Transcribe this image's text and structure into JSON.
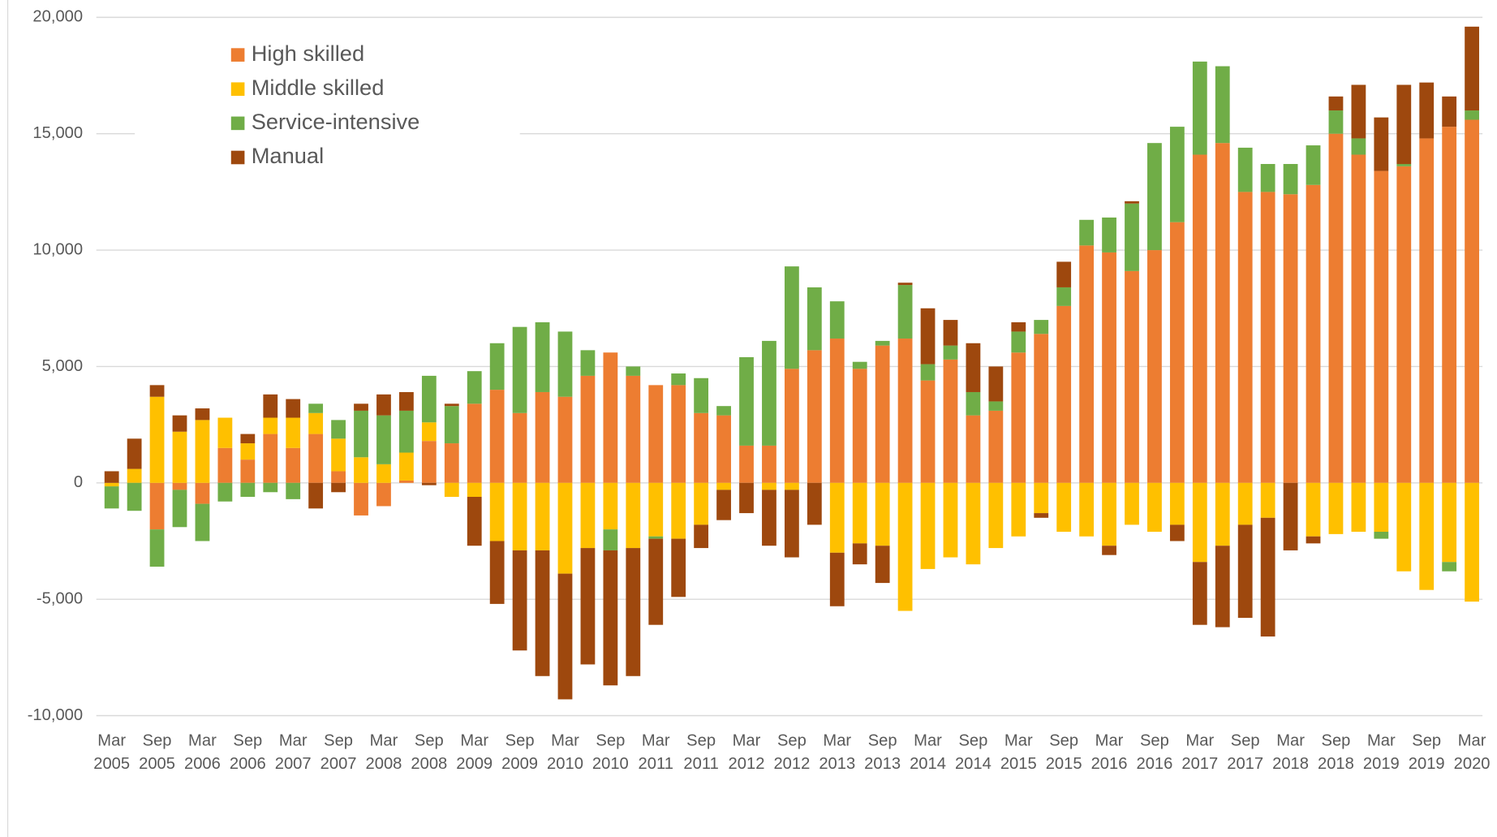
{
  "chart_data": {
    "type": "stacked_bar",
    "categories": [
      "Mar 2005",
      null,
      "Sep 2005",
      null,
      "Mar 2006",
      null,
      "Sep 2006",
      null,
      "Mar 2007",
      null,
      "Sep 2007",
      null,
      "Mar 2008",
      null,
      "Sep 2008",
      null,
      "Mar 2009",
      null,
      "Sep 2009",
      null,
      "Mar 2010",
      null,
      "Sep 2010",
      null,
      "Mar 2011",
      null,
      "Sep 2011",
      null,
      "Mar 2012",
      null,
      "Sep 2012",
      null,
      "Mar 2013",
      null,
      "Sep 2013",
      null,
      "Mar 2014",
      null,
      "Sep 2014",
      null,
      "Mar 2015",
      null,
      "Sep 2015",
      null,
      "Mar 2016",
      null,
      "Sep 2016",
      null,
      "Mar 2017",
      null,
      "Sep 2017",
      null,
      "Mar 2018",
      null,
      "Sep 2018",
      null,
      "Mar 2019",
      null,
      "Sep 2019",
      null,
      "Mar 2020"
    ],
    "series": [
      {
        "name": "High skilled",
        "color": "#ed7d31",
        "values": [
          0,
          0,
          -2000,
          -300,
          -900,
          1500,
          1000,
          2100,
          1500,
          2100,
          500,
          -1400,
          -1000,
          100,
          1800,
          1700,
          3400,
          4000,
          3000,
          3900,
          3700,
          4600,
          5600,
          4600,
          4200,
          4200,
          3000,
          2900,
          1600,
          1600,
          4900,
          5700,
          6200,
          4900,
          5900,
          6200,
          4400,
          5300,
          2900,
          3100,
          5600,
          6400,
          7600,
          10200,
          9900,
          9100,
          10000,
          11200,
          14100,
          14600,
          12500,
          12500,
          12400,
          12800,
          15000,
          14100,
          13400,
          13600,
          14800,
          15300,
          15600
        ]
      },
      {
        "name": "Middle skilled",
        "color": "#ffc000",
        "values": [
          -150,
          600,
          3700,
          2200,
          2700,
          1300,
          700,
          700,
          1300,
          900,
          1400,
          1100,
          800,
          1200,
          800,
          -600,
          -600,
          -2500,
          -2900,
          -2900,
          -3900,
          -2800,
          -2000,
          -2800,
          -2300,
          -2400,
          -1800,
          -300,
          0,
          -300,
          -300,
          0,
          -3000,
          -2600,
          -2700,
          -5500,
          -3700,
          -3200,
          -3500,
          -2800,
          -2300,
          -1300,
          -2100,
          -2300,
          -2700,
          -1800,
          -2100,
          -1800,
          -3400,
          -2700,
          -1800,
          -1500,
          0,
          -2300,
          -2200,
          -2100,
          -2100,
          -3800,
          -4600,
          -3400,
          -5100
        ]
      },
      {
        "name": "Service-intensive",
        "color": "#70ad47",
        "values": [
          -950,
          -1200,
          -1600,
          -1600,
          -1600,
          -800,
          -600,
          -400,
          -700,
          400,
          800,
          2000,
          2100,
          1800,
          2000,
          1600,
          1400,
          2000,
          3700,
          3000,
          2800,
          1100,
          -900,
          400,
          -100,
          500,
          1500,
          400,
          3800,
          4500,
          4400,
          2700,
          1600,
          300,
          200,
          2300,
          700,
          600,
          1000,
          400,
          900,
          600,
          800,
          1100,
          1500,
          2900,
          4600,
          4100,
          4000,
          3300,
          1900,
          1200,
          1300,
          1700,
          1000,
          700,
          -300,
          100,
          0,
          -400,
          400
        ]
      },
      {
        "name": "Manual",
        "color": "#9e480e",
        "values": [
          500,
          1300,
          500,
          700,
          500,
          0,
          400,
          1000,
          800,
          -1100,
          -400,
          300,
          900,
          800,
          -100,
          100,
          -2100,
          -2700,
          -4300,
          -5400,
          -5400,
          -5000,
          -5800,
          -5500,
          -3700,
          -2500,
          -1000,
          -1300,
          -1300,
          -2400,
          -2900,
          -1800,
          -2300,
          -900,
          -1600,
          100,
          2400,
          1100,
          2100,
          1500,
          400,
          -200,
          1100,
          0,
          -400,
          100,
          0,
          -700,
          -2700,
          -3500,
          -4000,
          -5100,
          -2900,
          -300,
          600,
          2300,
          2300,
          3400,
          2400,
          1300,
          3600
        ]
      }
    ],
    "ylim": [
      -10000,
      20000
    ],
    "yticks": [
      {
        "value": -10000,
        "label": "-10,000"
      },
      {
        "value": -5000,
        "label": "-5,000"
      },
      0,
      {
        "value": 5000,
        "label": "5,000"
      },
      {
        "value": 10000,
        "label": "10,000"
      },
      {
        "value": 15000,
        "label": "15,000"
      },
      {
        "value": 20000,
        "label": "20,000"
      }
    ],
    "grid": true,
    "legend": "upper left"
  }
}
